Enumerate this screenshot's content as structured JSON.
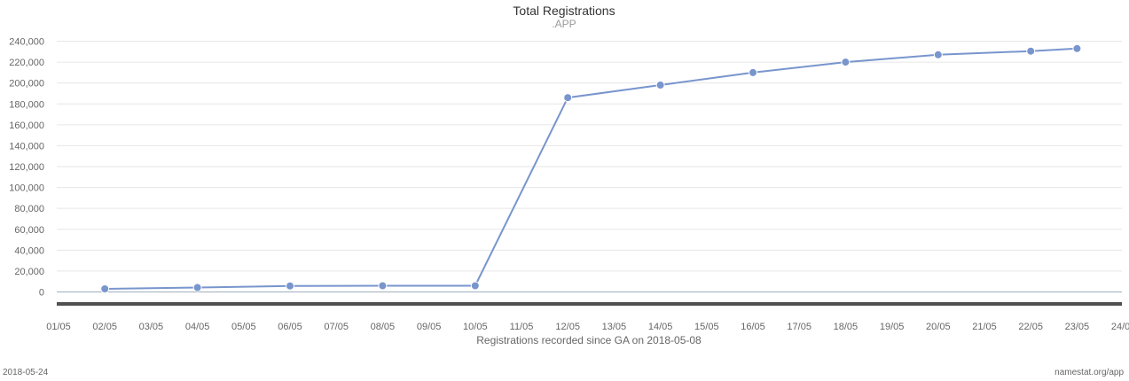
{
  "footer": {
    "date": "2018-05-24",
    "source": "namestat.org/app"
  },
  "chart_data": {
    "type": "line",
    "title": "Total Registrations",
    "subtitle": ".APP",
    "xlabel": "Registrations recorded since GA on 2018-05-08",
    "ylabel": "",
    "x_ticks": [
      "01/05",
      "02/05",
      "03/05",
      "04/05",
      "05/05",
      "06/05",
      "07/05",
      "08/05",
      "09/05",
      "10/05",
      "11/05",
      "12/05",
      "13/05",
      "14/05",
      "15/05",
      "16/05",
      "17/05",
      "18/05",
      "19/05",
      "20/05",
      "21/05",
      "22/05",
      "23/05",
      "24/05"
    ],
    "y_ticks": [
      0,
      20000,
      40000,
      60000,
      80000,
      100000,
      120000,
      140000,
      160000,
      180000,
      200000,
      220000,
      240000
    ],
    "y_tick_labels": [
      "0",
      "20,000",
      "40,000",
      "60,000",
      "80,000",
      "100,000",
      "120,000",
      "140,000",
      "160,000",
      "180,000",
      "200,000",
      "220,000",
      "240,000"
    ],
    "ylim": [
      0,
      240000
    ],
    "grid": true,
    "line_color": "#7895cd",
    "series": [
      {
        "x": [
          "02/05",
          "04/05",
          "06/05",
          "08/05",
          "10/05",
          "12/05",
          "14/05",
          "16/05",
          "18/05",
          "20/05",
          "22/05",
          "23/05"
        ],
        "values": [
          3000,
          4200,
          5800,
          5900,
          5900,
          186000,
          198000,
          210000,
          220000,
          227000,
          230500,
          233000
        ]
      }
    ]
  }
}
